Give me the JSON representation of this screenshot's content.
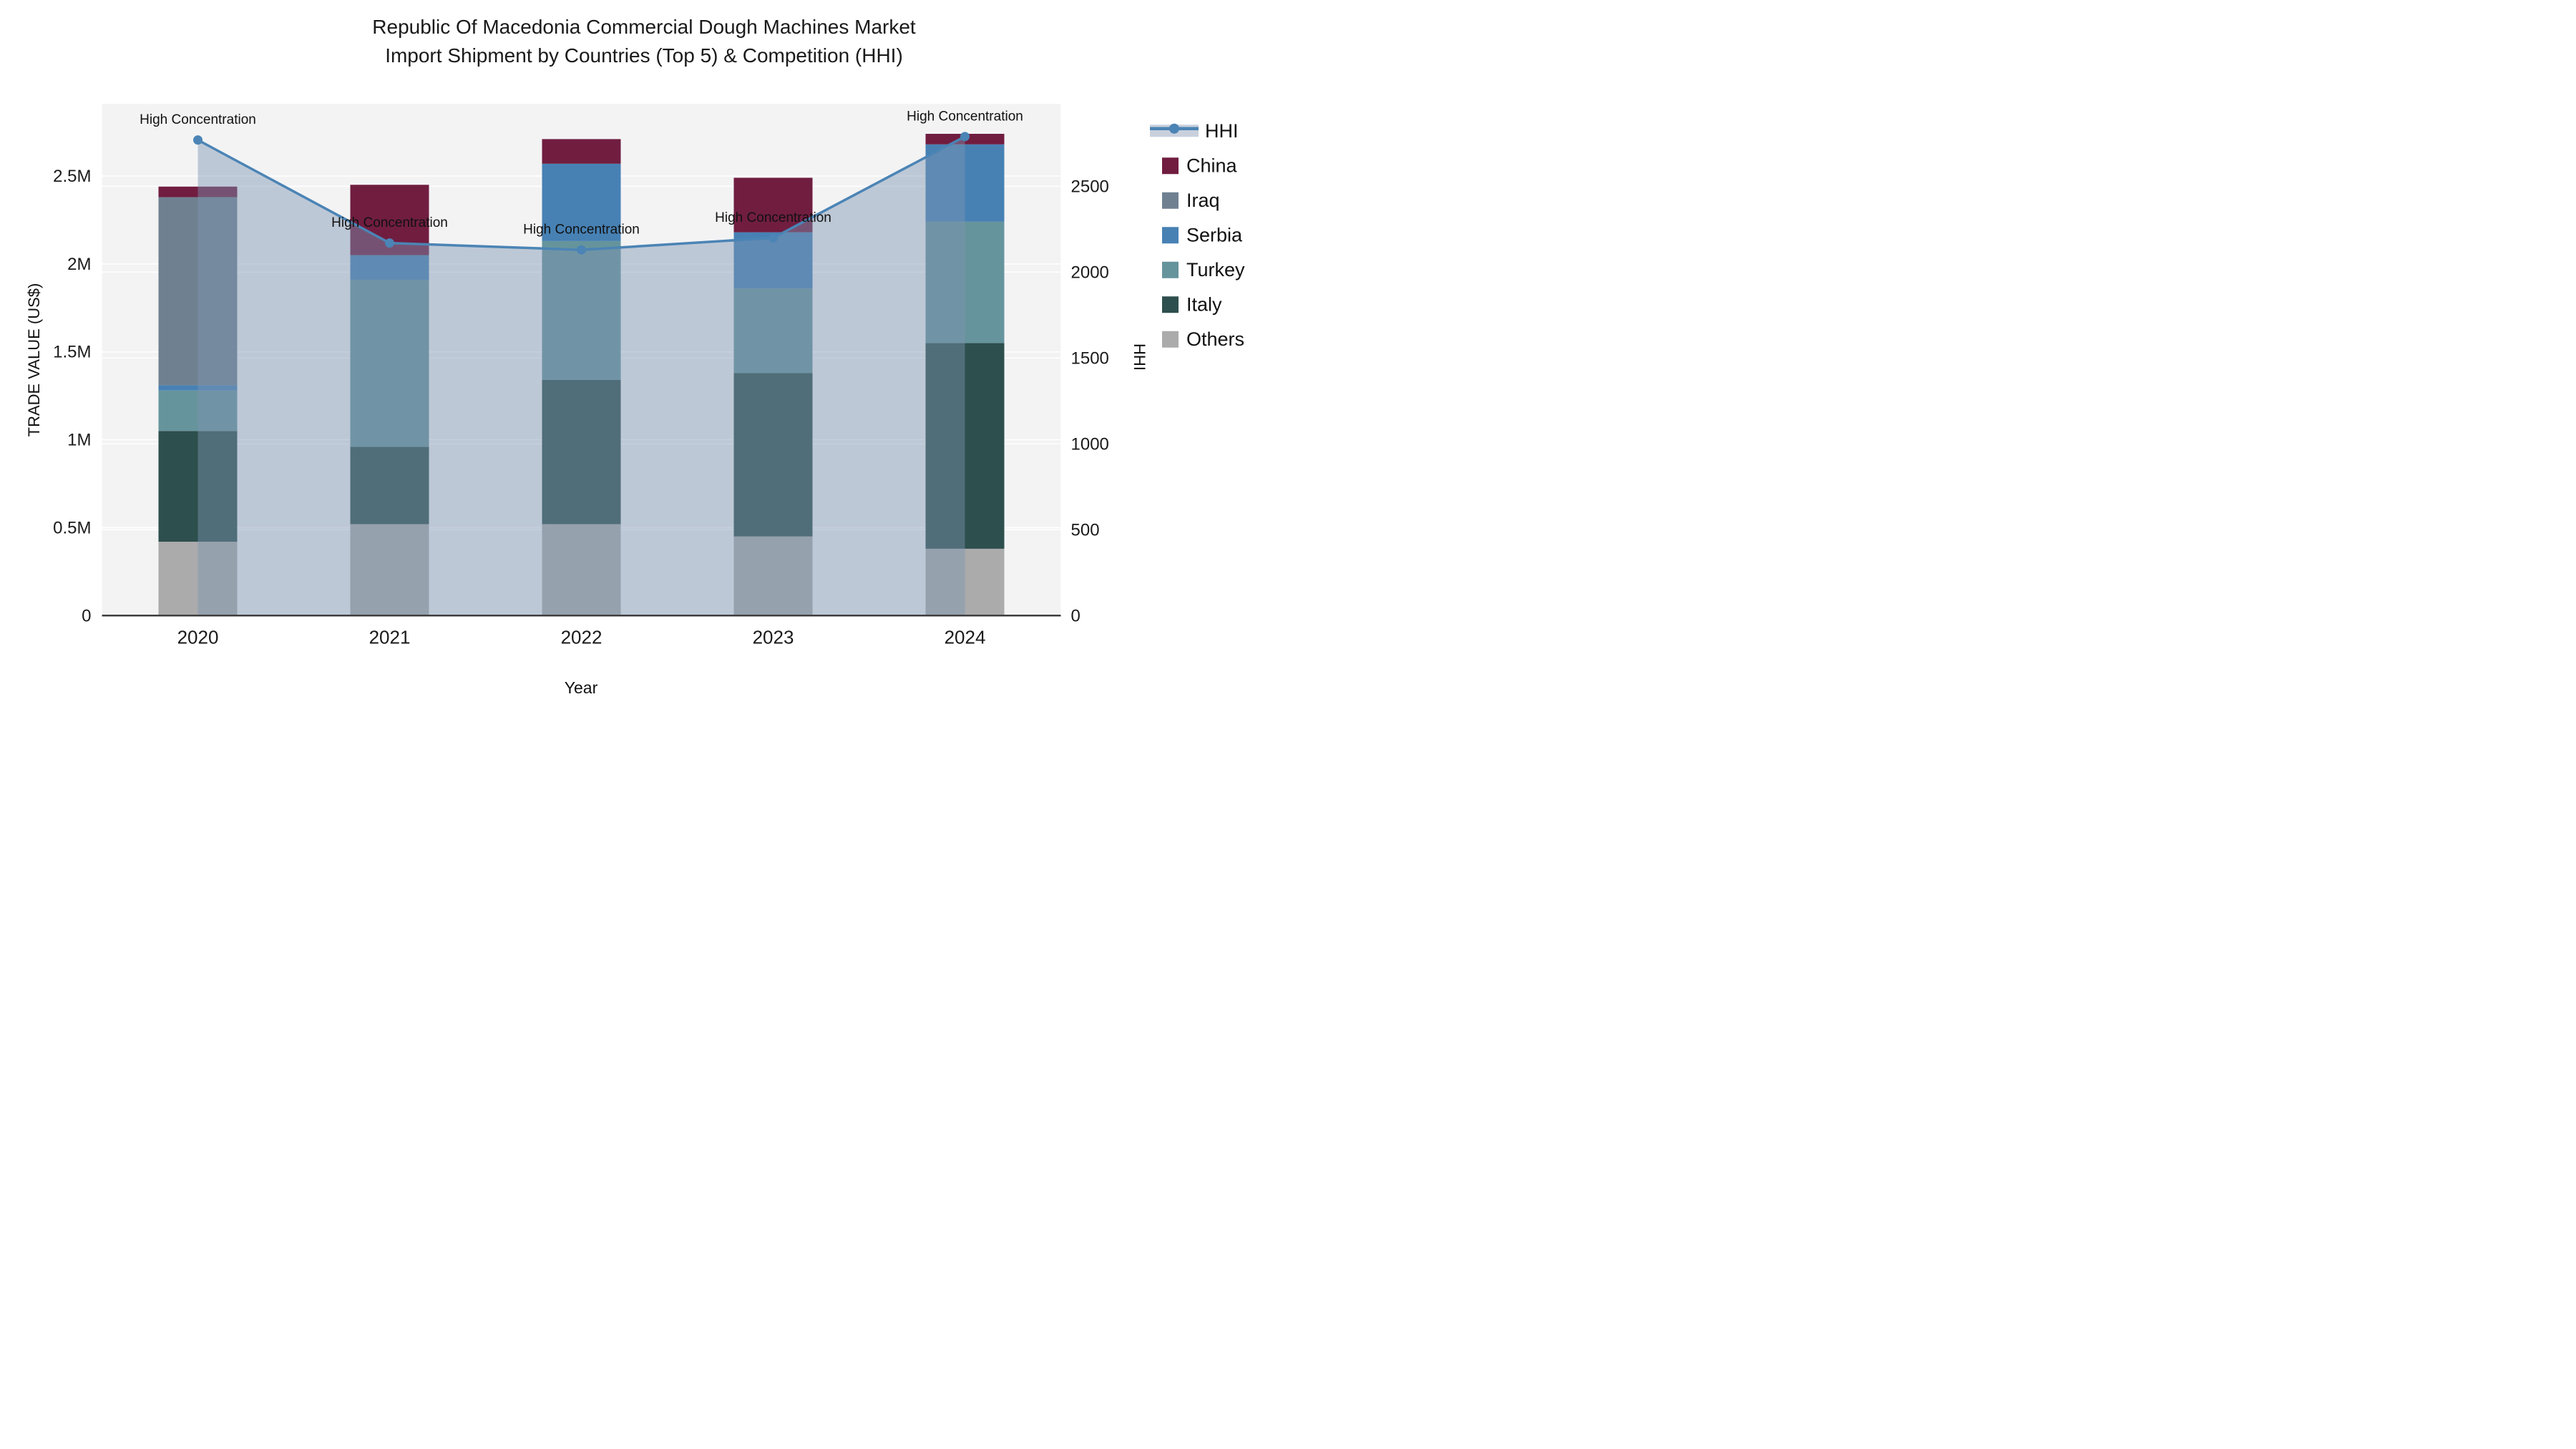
{
  "title": {
    "line1": "Republic Of Macedonia Commercial Dough Machines Market",
    "line2": "Import Shipment by Countries (Top 5) & Competition (HHI)"
  },
  "axes": {
    "x": {
      "title": "Year",
      "tick_labels": [
        "2020",
        "2021",
        "2022",
        "2023",
        "2024"
      ]
    },
    "y_left": {
      "title": "TRADE VALUE (US$)",
      "tick_labels": [
        "0",
        "0.5M",
        "1M",
        "1.5M",
        "2M",
        "2.5M"
      ],
      "tick_values": [
        0,
        0.5,
        1,
        1.5,
        2,
        2.5
      ],
      "max": 2.91,
      "unit": "M US$"
    },
    "y_right": {
      "title": "HHI",
      "tick_labels": [
        "0",
        "500",
        "1000",
        "1500",
        "2000",
        "2500"
      ],
      "tick_values": [
        0,
        500,
        1000,
        1500,
        2000,
        2500
      ],
      "max": 2980
    }
  },
  "chart_data": {
    "type": "combo: stacked bar (left axis) + line with area fill (right axis)",
    "categories": [
      "2020",
      "2021",
      "2022",
      "2023",
      "2024"
    ],
    "bar_value_unit": "million US$",
    "stack_order_bottom_to_top": [
      "Others",
      "Italy",
      "Turkey",
      "Serbia",
      "Iraq",
      "China"
    ],
    "series": [
      {
        "name": "China",
        "type": "bar",
        "color": "#701d40",
        "values": [
          0.06,
          0.4,
          0.14,
          0.31,
          0.06
        ]
      },
      {
        "name": "Iraq",
        "type": "bar",
        "color": "#6f8191",
        "values": [
          1.07,
          0.0,
          0.0,
          0.0,
          0.0
        ]
      },
      {
        "name": "Serbia",
        "type": "bar",
        "color": "#4781b4",
        "values": [
          0.03,
          0.14,
          0.44,
          0.32,
          0.44
        ]
      },
      {
        "name": "Turkey",
        "type": "bar",
        "color": "#66949c",
        "values": [
          0.23,
          0.95,
          0.79,
          0.48,
          0.69
        ]
      },
      {
        "name": "Italy",
        "type": "bar",
        "color": "#2d4f4d",
        "values": [
          0.63,
          0.44,
          0.82,
          0.93,
          1.17
        ]
      },
      {
        "name": "Others",
        "type": "bar",
        "color": "#ababab",
        "values": [
          0.42,
          0.52,
          0.52,
          0.45,
          0.38
        ]
      },
      {
        "name": "HHI",
        "type": "line",
        "color": "#4b84b5",
        "area_fill": "rgba(125,148,178,0.45)",
        "axis": "right",
        "values": [
          2770,
          2170,
          2130,
          2200,
          2790
        ]
      }
    ],
    "bar_totals": [
      2.44,
      2.45,
      2.71,
      2.49,
      2.74
    ],
    "point_annotations": [
      "High Concentration",
      "High Concentration",
      "High Concentration",
      "High Concentration",
      "High Concentration"
    ],
    "legend_order": [
      "HHI",
      "China",
      "Iraq",
      "Serbia",
      "Turkey",
      "Italy",
      "Others"
    ],
    "legend_position": "right",
    "grid": "on"
  },
  "colors": {
    "plot_background": "#f3f3f4",
    "page_background": "#ffffff",
    "gridline": "#ffffff",
    "axis_line": "#3d3d3d",
    "text": "#111111",
    "accent_line": "#4b84b5"
  }
}
